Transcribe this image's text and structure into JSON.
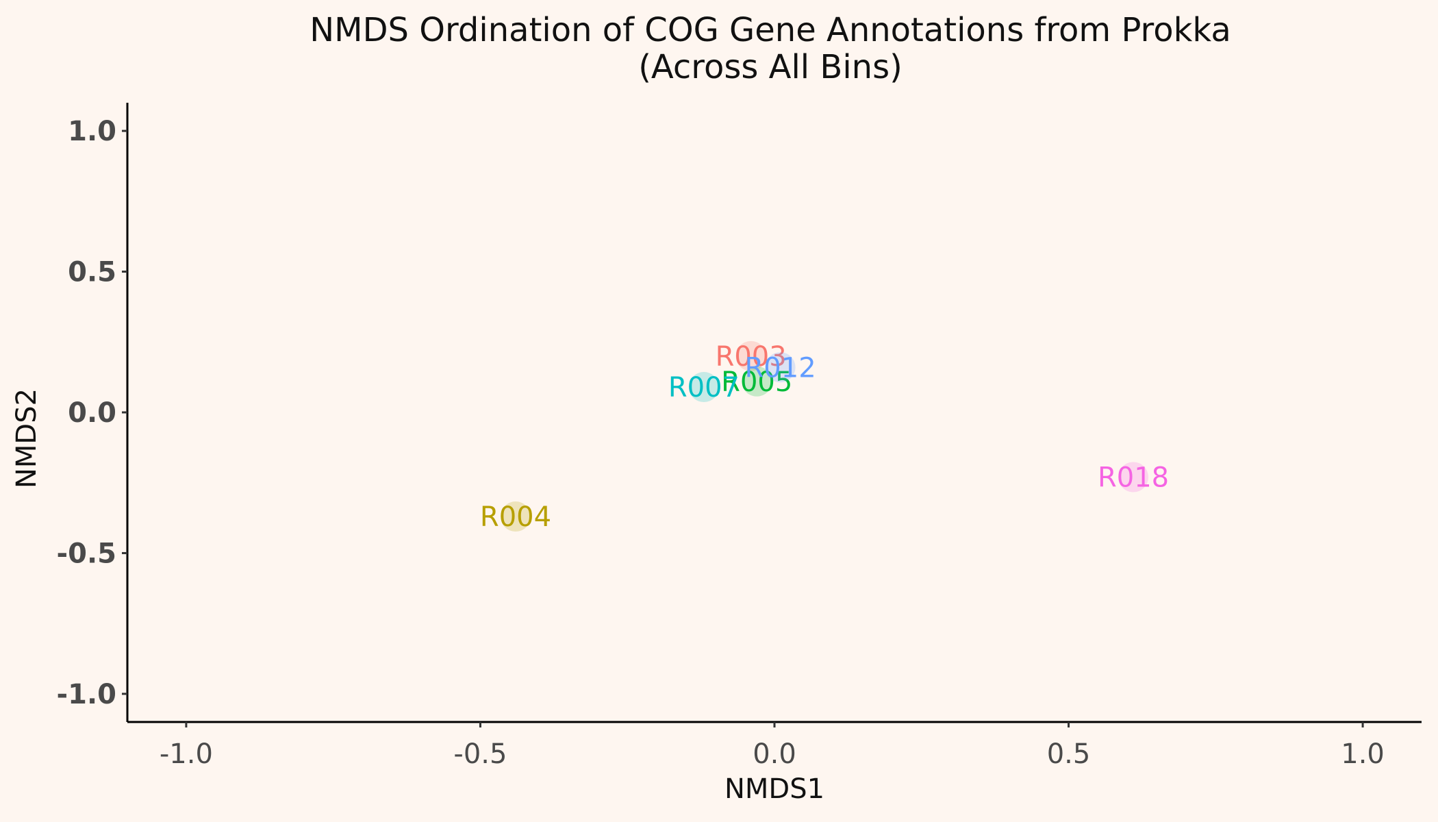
{
  "chart_data": {
    "type": "scatter",
    "title": "NMDS Ordination of COG Gene Annotations from Prokka",
    "subtitle": "(Across All Bins)",
    "xlabel": "NMDS1",
    "ylabel": "NMDS2",
    "xlim": [
      -1.1,
      1.1
    ],
    "ylim": [
      -1.1,
      1.1
    ],
    "xticks": [
      -1.0,
      -0.5,
      0.0,
      0.5,
      1.0
    ],
    "xtick_labels": [
      "-1.0",
      "-0.5",
      "0.0",
      "0.5",
      "1.0"
    ],
    "yticks": [
      -1.0,
      -0.5,
      0.0,
      0.5,
      1.0
    ],
    "ytick_labels": [
      "-1.0",
      "-0.5",
      "0.0",
      "0.5",
      "1.0"
    ],
    "grid": false,
    "legend": false,
    "points": [
      {
        "label": "R003",
        "x": -0.04,
        "y": 0.2,
        "color": "#f8766d"
      },
      {
        "label": "R004",
        "x": -0.44,
        "y": -0.37,
        "color": "#b79f00"
      },
      {
        "label": "R005",
        "x": -0.03,
        "y": 0.11,
        "color": "#00ba38"
      },
      {
        "label": "R007",
        "x": -0.12,
        "y": 0.09,
        "color": "#00bfc4"
      },
      {
        "label": "R012",
        "x": 0.01,
        "y": 0.16,
        "color": "#619cff"
      },
      {
        "label": "R018",
        "x": 0.61,
        "y": -0.23,
        "color": "#f564e3"
      }
    ]
  }
}
